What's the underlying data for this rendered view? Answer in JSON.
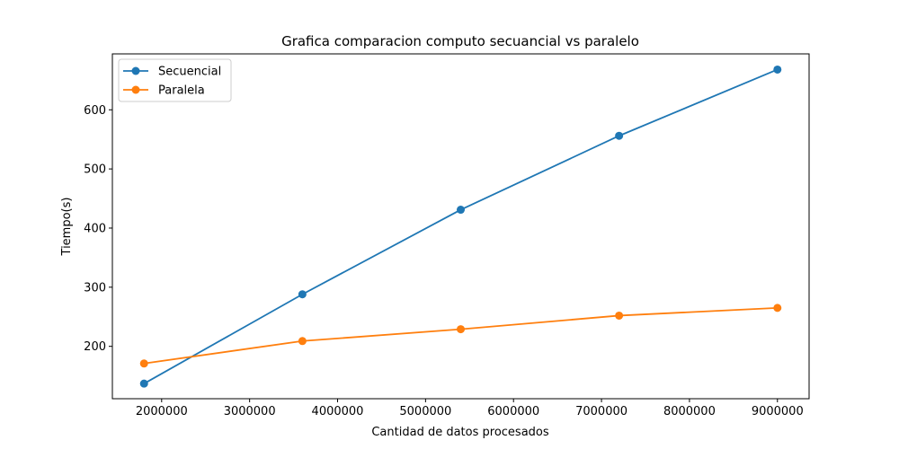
{
  "chart_data": {
    "type": "line",
    "title": "Grafica comparacion computo secuancial vs paralelo",
    "xlabel": "Cantidad de datos procesados",
    "ylabel": "Tiempo(s)",
    "x": [
      1800000,
      3600000,
      5400000,
      7200000,
      9000000
    ],
    "series": [
      {
        "name": "Secuencial",
        "color": "#1f77b4",
        "values": [
          137,
          288,
          431,
          556,
          668
        ]
      },
      {
        "name": "Paralela",
        "color": "#ff7f0e",
        "values": [
          171,
          209,
          229,
          252,
          265
        ]
      }
    ],
    "xlim": [
      1440000,
      9360000
    ],
    "ylim": [
      111.45,
      694.55
    ],
    "xticks": [
      2000000,
      3000000,
      4000000,
      5000000,
      6000000,
      7000000,
      8000000,
      9000000
    ],
    "xtick_labels": [
      "2000000",
      "3000000",
      "4000000",
      "5000000",
      "6000000",
      "7000000",
      "8000000",
      "9000000"
    ],
    "yticks": [
      200,
      300,
      400,
      500,
      600
    ],
    "ytick_labels": [
      "200",
      "300",
      "400",
      "500",
      "600"
    ],
    "grid": false,
    "legend_position": "top-left",
    "marker": "circle"
  }
}
